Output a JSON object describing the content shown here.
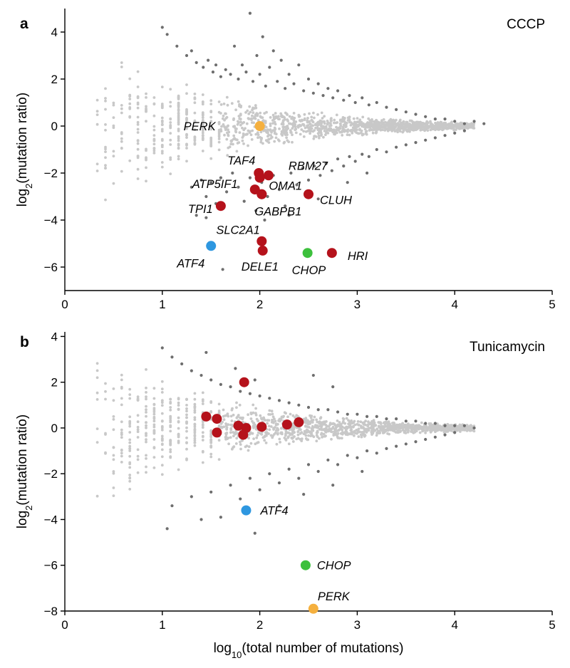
{
  "chart_data": [
    {
      "panel": "a",
      "type": "scatter",
      "title": "CCCP",
      "xlabel": "log10(total number of mutations)",
      "ylabel": "log2(mutation ratio)",
      "xlim": [
        0,
        5
      ],
      "ylim": [
        -7,
        5
      ],
      "xticks": [
        0,
        1,
        2,
        3,
        4,
        5
      ],
      "yticks": [
        -6,
        -4,
        -2,
        0,
        2,
        4
      ],
      "series": [
        {
          "kind": "background",
          "points": [
            [
              1.0,
              4.2
            ],
            [
              1.05,
              3.9
            ],
            [
              1.15,
              3.4
            ],
            [
              1.25,
              3.0
            ],
            [
              1.3,
              3.2
            ],
            [
              1.35,
              2.7
            ],
            [
              1.42,
              2.5
            ],
            [
              1.47,
              2.8
            ],
            [
              1.52,
              2.3
            ],
            [
              1.55,
              2.6
            ],
            [
              1.6,
              2.1
            ],
            [
              1.65,
              2.4
            ],
            [
              1.7,
              2.2
            ],
            [
              1.74,
              3.4
            ],
            [
              1.78,
              2.0
            ],
            [
              1.82,
              2.6
            ],
            [
              1.86,
              2.3
            ],
            [
              1.9,
              4.8
            ],
            [
              1.93,
              1.9
            ],
            [
              1.97,
              3.0
            ],
            [
              2.0,
              2.2
            ],
            [
              2.03,
              3.8
            ],
            [
              2.06,
              1.7
            ],
            [
              2.1,
              2.5
            ],
            [
              2.14,
              3.2
            ],
            [
              2.18,
              1.9
            ],
            [
              2.22,
              2.8
            ],
            [
              2.26,
              1.6
            ],
            [
              2.3,
              2.2
            ],
            [
              2.35,
              1.8
            ],
            [
              2.4,
              2.6
            ],
            [
              2.45,
              1.5
            ],
            [
              2.5,
              2.0
            ],
            [
              2.55,
              1.4
            ],
            [
              2.6,
              1.8
            ],
            [
              2.65,
              1.3
            ],
            [
              2.7,
              1.6
            ],
            [
              2.75,
              1.2
            ],
            [
              2.8,
              1.5
            ],
            [
              2.86,
              1.1
            ],
            [
              2.92,
              1.3
            ],
            [
              2.98,
              1.0
            ],
            [
              3.05,
              1.2
            ],
            [
              3.12,
              0.9
            ],
            [
              3.2,
              1.0
            ],
            [
              3.3,
              0.8
            ],
            [
              3.4,
              0.7
            ],
            [
              3.5,
              0.6
            ],
            [
              3.6,
              0.5
            ],
            [
              3.7,
              0.4
            ],
            [
              3.8,
              0.3
            ],
            [
              3.9,
              0.3
            ],
            [
              4.0,
              0.2
            ],
            [
              4.1,
              0.1
            ],
            [
              4.2,
              0.2
            ],
            [
              4.3,
              0.1
            ],
            [
              1.3,
              -2.6
            ],
            [
              1.4,
              -2.3
            ],
            [
              1.45,
              -3.0
            ],
            [
              1.5,
              -2.4
            ],
            [
              1.55,
              -3.3
            ],
            [
              1.6,
              -2.2
            ],
            [
              1.66,
              -2.8
            ],
            [
              1.72,
              -2.0
            ],
            [
              1.78,
              -2.6
            ],
            [
              1.84,
              -3.2
            ],
            [
              1.9,
              -2.2
            ],
            [
              1.96,
              -3.6
            ],
            [
              2.02,
              -2.4
            ],
            [
              2.08,
              -3.0
            ],
            [
              2.14,
              -2.1
            ],
            [
              2.2,
              -2.7
            ],
            [
              2.26,
              -3.4
            ],
            [
              2.32,
              -2.0
            ],
            [
              2.38,
              -2.5
            ],
            [
              2.44,
              -1.8
            ],
            [
              2.5,
              -2.3
            ],
            [
              2.56,
              -1.7
            ],
            [
              2.62,
              -2.1
            ],
            [
              2.68,
              -1.6
            ],
            [
              2.74,
              -1.9
            ],
            [
              2.8,
              -1.4
            ],
            [
              2.86,
              -1.7
            ],
            [
              2.92,
              -1.3
            ],
            [
              2.98,
              -1.5
            ],
            [
              3.05,
              -1.2
            ],
            [
              3.12,
              -1.3
            ],
            [
              3.2,
              -1.0
            ],
            [
              3.3,
              -1.1
            ],
            [
              3.4,
              -0.9
            ],
            [
              3.5,
              -0.8
            ],
            [
              3.6,
              -0.7
            ],
            [
              3.7,
              -0.6
            ],
            [
              3.8,
              -0.5
            ],
            [
              3.9,
              -0.4
            ],
            [
              4.0,
              -0.3
            ],
            [
              4.1,
              -0.2
            ],
            [
              1.35,
              -3.8
            ],
            [
              1.45,
              -3.9
            ],
            [
              1.62,
              -6.1
            ],
            [
              2.05,
              -4.0
            ],
            [
              2.3,
              -3.8
            ],
            [
              2.6,
              -3.1
            ],
            [
              2.9,
              -2.4
            ],
            [
              3.1,
              -2.0
            ]
          ]
        },
        {
          "kind": "highlight",
          "name": "PERK",
          "color": "#f5b03e",
          "x": 2.0,
          "y": 0.0
        },
        {
          "kind": "highlight",
          "name": "TAF4",
          "color": "#b5121b",
          "x": 1.99,
          "y": -2.0
        },
        {
          "kind": "highlight",
          "name": "",
          "color": "#b5121b",
          "x": 2.0,
          "y": -2.2
        },
        {
          "kind": "highlight",
          "name": "RBM27",
          "color": "#b5121b",
          "x": 2.09,
          "y": -2.1
        },
        {
          "kind": "highlight",
          "name": "ATP5IF1",
          "color": "#b5121b",
          "x": 1.95,
          "y": -2.7
        },
        {
          "kind": "highlight",
          "name": "OMA1",
          "color": "#b5121b",
          "x": 2.02,
          "y": -2.9
        },
        {
          "kind": "highlight",
          "name": "CLUH",
          "color": "#b5121b",
          "x": 2.5,
          "y": -2.9
        },
        {
          "kind": "highlight",
          "name": "GABPB1",
          "color": "#b5121b",
          "x": 2.02,
          "y": -2.9
        },
        {
          "kind": "highlight",
          "name": "TPI1",
          "color": "#b5121b",
          "x": 1.6,
          "y": -3.4
        },
        {
          "kind": "highlight",
          "name": "SLC2A1",
          "color": "#b5121b",
          "x": 2.02,
          "y": -4.9
        },
        {
          "kind": "highlight",
          "name": "DELE1",
          "color": "#b5121b",
          "x": 2.03,
          "y": -5.3
        },
        {
          "kind": "highlight",
          "name": "HRI",
          "color": "#b5121b",
          "x": 2.74,
          "y": -5.4
        },
        {
          "kind": "highlight",
          "name": "ATF4",
          "color": "#2e97e0",
          "x": 1.5,
          "y": -5.1
        },
        {
          "kind": "highlight",
          "name": "CHOP",
          "color": "#3cc03c",
          "x": 2.49,
          "y": -5.4
        }
      ]
    },
    {
      "panel": "b",
      "type": "scatter",
      "title": "Tunicamycin",
      "xlabel": "log10(total number of mutations)",
      "ylabel": "log2(mutation ratio)",
      "xlim": [
        0,
        5
      ],
      "ylim": [
        -8,
        4.2
      ],
      "xticks": [
        0,
        1,
        2,
        3,
        4,
        5
      ],
      "yticks": [
        -8,
        -6,
        -4,
        -2,
        0,
        2,
        4
      ],
      "series": [
        {
          "kind": "background",
          "points": [
            [
              1.0,
              3.5
            ],
            [
              1.1,
              3.1
            ],
            [
              1.2,
              2.8
            ],
            [
              1.3,
              2.5
            ],
            [
              1.4,
              2.3
            ],
            [
              1.45,
              3.3
            ],
            [
              1.5,
              2.1
            ],
            [
              1.6,
              1.9
            ],
            [
              1.7,
              1.8
            ],
            [
              1.75,
              2.6
            ],
            [
              1.8,
              1.6
            ],
            [
              1.9,
              1.5
            ],
            [
              1.95,
              2.1
            ],
            [
              2.0,
              1.4
            ],
            [
              2.1,
              1.3
            ],
            [
              2.2,
              1.2
            ],
            [
              2.3,
              1.1
            ],
            [
              2.4,
              1.0
            ],
            [
              2.5,
              0.9
            ],
            [
              2.6,
              0.8
            ],
            [
              2.7,
              0.8
            ],
            [
              2.8,
              0.7
            ],
            [
              2.9,
              0.6
            ],
            [
              3.0,
              0.6
            ],
            [
              3.1,
              0.5
            ],
            [
              3.2,
              0.5
            ],
            [
              3.3,
              0.4
            ],
            [
              3.4,
              0.4
            ],
            [
              3.5,
              0.3
            ],
            [
              3.6,
              0.3
            ],
            [
              3.7,
              0.2
            ],
            [
              3.8,
              0.2
            ],
            [
              3.9,
              0.1
            ],
            [
              4.0,
              0.1
            ],
            [
              4.1,
              0.1
            ],
            [
              4.2,
              0.0
            ],
            [
              2.75,
              1.8
            ],
            [
              2.55,
              2.3
            ],
            [
              1.1,
              -3.4
            ],
            [
              1.3,
              -3.0
            ],
            [
              1.5,
              -2.8
            ],
            [
              1.6,
              -3.9
            ],
            [
              1.7,
              -2.5
            ],
            [
              1.8,
              -3.1
            ],
            [
              1.9,
              -2.2
            ],
            [
              2.0,
              -2.7
            ],
            [
              2.1,
              -2.0
            ],
            [
              2.2,
              -2.4
            ],
            [
              2.3,
              -1.8
            ],
            [
              2.4,
              -2.2
            ],
            [
              2.5,
              -1.6
            ],
            [
              2.6,
              -1.9
            ],
            [
              2.7,
              -1.4
            ],
            [
              2.8,
              -1.6
            ],
            [
              2.9,
              -1.2
            ],
            [
              3.0,
              -1.3
            ],
            [
              3.1,
              -1.0
            ],
            [
              3.2,
              -1.1
            ],
            [
              3.3,
              -0.9
            ],
            [
              3.4,
              -0.8
            ],
            [
              3.5,
              -0.7
            ],
            [
              3.6,
              -0.6
            ],
            [
              3.7,
              -0.5
            ],
            [
              3.8,
              -0.4
            ],
            [
              3.9,
              -0.3
            ],
            [
              4.0,
              -0.2
            ],
            [
              1.05,
              -4.4
            ],
            [
              1.4,
              -4.0
            ],
            [
              1.95,
              -4.6
            ],
            [
              2.2,
              -3.4
            ],
            [
              2.45,
              -2.9
            ],
            [
              2.75,
              -2.5
            ],
            [
              3.05,
              -1.9
            ]
          ]
        },
        {
          "kind": "highlight",
          "name": "",
          "color": "#b5121b",
          "x": 1.84,
          "y": 2.0
        },
        {
          "kind": "highlight",
          "name": "",
          "color": "#b5121b",
          "x": 1.45,
          "y": 0.5
        },
        {
          "kind": "highlight",
          "name": "",
          "color": "#b5121b",
          "x": 1.56,
          "y": 0.4
        },
        {
          "kind": "highlight",
          "name": "",
          "color": "#b5121b",
          "x": 1.56,
          "y": -0.2
        },
        {
          "kind": "highlight",
          "name": "",
          "color": "#b5121b",
          "x": 1.78,
          "y": 0.1
        },
        {
          "kind": "highlight",
          "name": "",
          "color": "#b5121b",
          "x": 1.86,
          "y": 0.0
        },
        {
          "kind": "highlight",
          "name": "",
          "color": "#b5121b",
          "x": 1.83,
          "y": -0.3
        },
        {
          "kind": "highlight",
          "name": "",
          "color": "#b5121b",
          "x": 2.02,
          "y": 0.05
        },
        {
          "kind": "highlight",
          "name": "",
          "color": "#b5121b",
          "x": 2.28,
          "y": 0.15
        },
        {
          "kind": "highlight",
          "name": "",
          "color": "#b5121b",
          "x": 2.4,
          "y": 0.25
        },
        {
          "kind": "highlight",
          "name": "ATF4",
          "color": "#2e97e0",
          "x": 1.86,
          "y": -3.6
        },
        {
          "kind": "highlight",
          "name": "CHOP",
          "color": "#3cc03c",
          "x": 2.47,
          "y": -6.0
        },
        {
          "kind": "highlight",
          "name": "PERK",
          "color": "#f5b03e",
          "x": 2.55,
          "y": -7.9
        }
      ]
    }
  ]
}
